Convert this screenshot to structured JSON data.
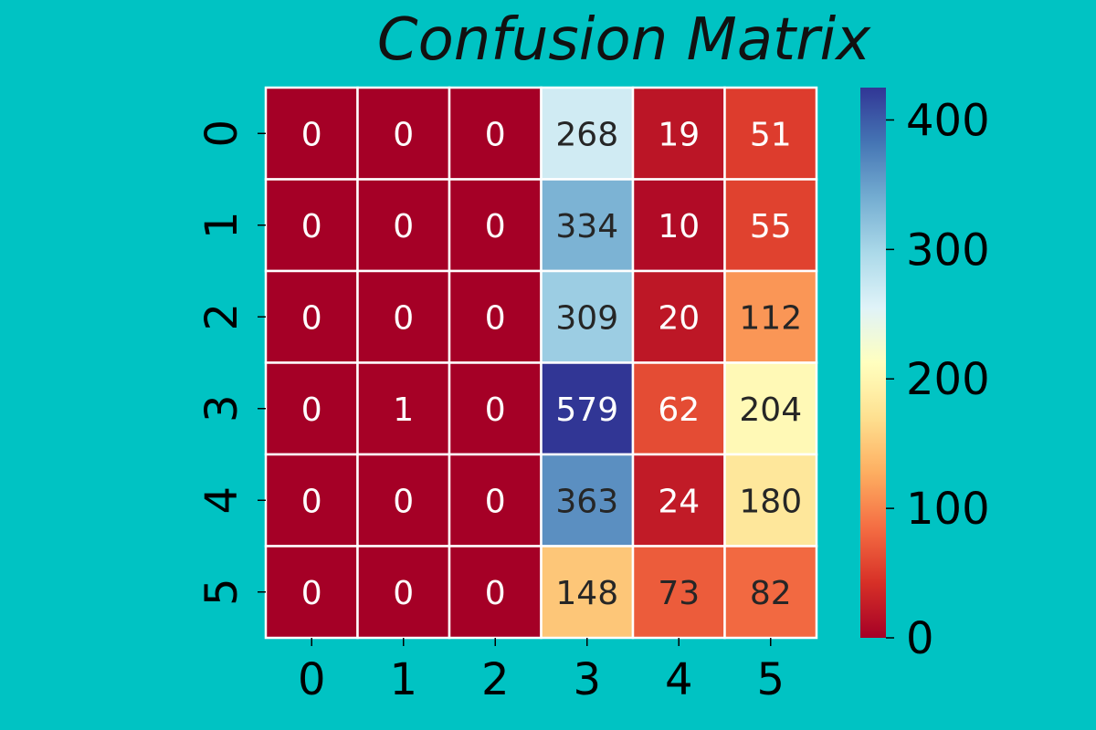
{
  "chart_data": {
    "type": "heatmap",
    "title": "Confusion Matrix",
    "xlabel": "",
    "ylabel": "",
    "x_categories": [
      "0",
      "1",
      "2",
      "3",
      "4",
      "5"
    ],
    "y_categories": [
      "0",
      "1",
      "2",
      "3",
      "4",
      "5"
    ],
    "values": [
      [
        0,
        0,
        0,
        268,
        19,
        51
      ],
      [
        0,
        0,
        0,
        334,
        10,
        55
      ],
      [
        0,
        0,
        0,
        309,
        20,
        112
      ],
      [
        0,
        1,
        0,
        579,
        62,
        204
      ],
      [
        0,
        0,
        0,
        363,
        24,
        180
      ],
      [
        0,
        0,
        0,
        148,
        73,
        82
      ]
    ],
    "annotate": true,
    "colormap": "RdYlBu",
    "color_range": [
      0,
      425
    ],
    "colorbar": {
      "ticks": [
        0,
        100,
        200,
        300,
        400
      ],
      "range": [
        0,
        425
      ]
    }
  },
  "colors": {
    "background": "#00c3c3",
    "cell_border": "#ffffff",
    "dark_text": "#262626",
    "light_text": "#ffffff"
  }
}
